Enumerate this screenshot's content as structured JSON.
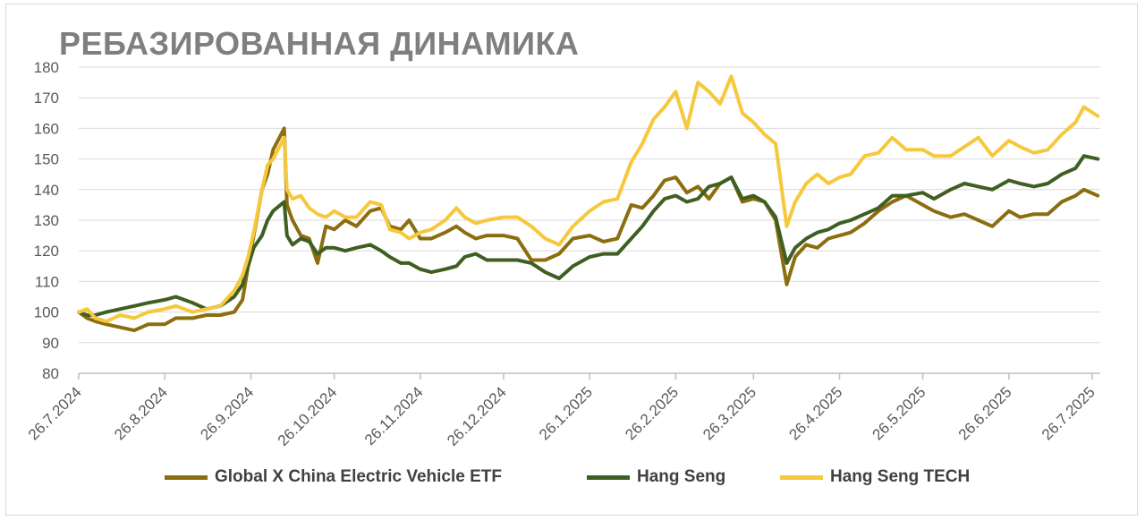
{
  "title": "РЕБАЗИРОВАННАЯ ДИНАМИКА",
  "chart_data": {
    "type": "line",
    "title": "РЕБАЗИРОВАННАЯ ДИНАМИКА",
    "xlabel": "",
    "ylabel": "",
    "ylim": [
      80,
      180
    ],
    "yticks": [
      "80",
      "90",
      "100",
      "110",
      "120",
      "130",
      "140",
      "150",
      "160",
      "170",
      "180"
    ],
    "xticks": [
      "26.7.2024",
      "26.8.2024",
      "26.9.2024",
      "26.10.2024",
      "26.11.2024",
      "26.12.2024",
      "26.1.2025",
      "26.2.2025",
      "26.3.2025",
      "26.4.2025",
      "26.5.2025",
      "26.6.2025",
      "26.7.2025"
    ],
    "grid": "horizontal",
    "legend_position": "bottom",
    "series": [
      {
        "name": "Global X China Electric Vehicle ETF",
        "color": "#8c6d0f",
        "points": [
          [
            "2024-07-26",
            100
          ],
          [
            "2024-07-29",
            98
          ],
          [
            "2024-08-01",
            97
          ],
          [
            "2024-08-05",
            96
          ],
          [
            "2024-08-10",
            95
          ],
          [
            "2024-08-15",
            94
          ],
          [
            "2024-08-20",
            96
          ],
          [
            "2024-08-26",
            96
          ],
          [
            "2024-08-30",
            98
          ],
          [
            "2024-09-05",
            98
          ],
          [
            "2024-09-10",
            99
          ],
          [
            "2024-09-15",
            99
          ],
          [
            "2024-09-20",
            100
          ],
          [
            "2024-09-23",
            104
          ],
          [
            "2024-09-25",
            115
          ],
          [
            "2024-09-27",
            125
          ],
          [
            "2024-09-30",
            140
          ],
          [
            "2024-10-02",
            145
          ],
          [
            "2024-10-04",
            153
          ],
          [
            "2024-10-08",
            160
          ],
          [
            "2024-10-09",
            135
          ],
          [
            "2024-10-11",
            130
          ],
          [
            "2024-10-14",
            125
          ],
          [
            "2024-10-17",
            124
          ],
          [
            "2024-10-20",
            116
          ],
          [
            "2024-10-23",
            128
          ],
          [
            "2024-10-26",
            127
          ],
          [
            "2024-10-30",
            130
          ],
          [
            "2024-11-03",
            128
          ],
          [
            "2024-11-08",
            133
          ],
          [
            "2024-11-12",
            134
          ],
          [
            "2024-11-15",
            128
          ],
          [
            "2024-11-19",
            127
          ],
          [
            "2024-11-22",
            130
          ],
          [
            "2024-11-26",
            124
          ],
          [
            "2024-11-30",
            124
          ],
          [
            "2024-12-05",
            126
          ],
          [
            "2024-12-09",
            128
          ],
          [
            "2024-12-12",
            126
          ],
          [
            "2024-12-16",
            124
          ],
          [
            "2024-12-20",
            125
          ],
          [
            "2024-12-26",
            125
          ],
          [
            "2024-12-31",
            124
          ],
          [
            "2025-01-05",
            117
          ],
          [
            "2025-01-10",
            117
          ],
          [
            "2025-01-15",
            119
          ],
          [
            "2025-01-20",
            124
          ],
          [
            "2025-01-26",
            125
          ],
          [
            "2025-01-31",
            123
          ],
          [
            "2025-02-05",
            124
          ],
          [
            "2025-02-10",
            135
          ],
          [
            "2025-02-14",
            134
          ],
          [
            "2025-02-18",
            138
          ],
          [
            "2025-02-22",
            143
          ],
          [
            "2025-02-26",
            144
          ],
          [
            "2025-03-02",
            139
          ],
          [
            "2025-03-06",
            141
          ],
          [
            "2025-03-10",
            137
          ],
          [
            "2025-03-14",
            142
          ],
          [
            "2025-03-18",
            144
          ],
          [
            "2025-03-22",
            136
          ],
          [
            "2025-03-26",
            137
          ],
          [
            "2025-03-30",
            136
          ],
          [
            "2025-04-03",
            130
          ],
          [
            "2025-04-07",
            109
          ],
          [
            "2025-04-10",
            118
          ],
          [
            "2025-04-14",
            122
          ],
          [
            "2025-04-18",
            121
          ],
          [
            "2025-04-22",
            124
          ],
          [
            "2025-04-26",
            125
          ],
          [
            "2025-04-30",
            126
          ],
          [
            "2025-05-05",
            129
          ],
          [
            "2025-05-10",
            133
          ],
          [
            "2025-05-15",
            136
          ],
          [
            "2025-05-20",
            138
          ],
          [
            "2025-05-26",
            135
          ],
          [
            "2025-05-30",
            133
          ],
          [
            "2025-06-05",
            131
          ],
          [
            "2025-06-10",
            132
          ],
          [
            "2025-06-15",
            130
          ],
          [
            "2025-06-20",
            128
          ],
          [
            "2025-06-26",
            133
          ],
          [
            "2025-06-30",
            131
          ],
          [
            "2025-07-05",
            132
          ],
          [
            "2025-07-10",
            132
          ],
          [
            "2025-07-15",
            136
          ],
          [
            "2025-07-20",
            138
          ],
          [
            "2025-07-23",
            140
          ],
          [
            "2025-07-28",
            138
          ]
        ]
      },
      {
        "name": "Hang Seng",
        "color": "#3f5f22",
        "points": [
          [
            "2024-07-26",
            100
          ],
          [
            "2024-07-29",
            99
          ],
          [
            "2024-08-01",
            99
          ],
          [
            "2024-08-05",
            100
          ],
          [
            "2024-08-10",
            101
          ],
          [
            "2024-08-15",
            102
          ],
          [
            "2024-08-20",
            103
          ],
          [
            "2024-08-26",
            104
          ],
          [
            "2024-08-30",
            105
          ],
          [
            "2024-09-05",
            103
          ],
          [
            "2024-09-10",
            101
          ],
          [
            "2024-09-15",
            102
          ],
          [
            "2024-09-20",
            105
          ],
          [
            "2024-09-23",
            109
          ],
          [
            "2024-09-25",
            115
          ],
          [
            "2024-09-27",
            121
          ],
          [
            "2024-09-30",
            125
          ],
          [
            "2024-10-02",
            130
          ],
          [
            "2024-10-04",
            133
          ],
          [
            "2024-10-08",
            136
          ],
          [
            "2024-10-09",
            125
          ],
          [
            "2024-10-11",
            122
          ],
          [
            "2024-10-14",
            124
          ],
          [
            "2024-10-17",
            123
          ],
          [
            "2024-10-20",
            119
          ],
          [
            "2024-10-23",
            121
          ],
          [
            "2024-10-26",
            121
          ],
          [
            "2024-10-30",
            120
          ],
          [
            "2024-11-03",
            121
          ],
          [
            "2024-11-08",
            122
          ],
          [
            "2024-11-12",
            120
          ],
          [
            "2024-11-15",
            118
          ],
          [
            "2024-11-19",
            116
          ],
          [
            "2024-11-22",
            116
          ],
          [
            "2024-11-26",
            114
          ],
          [
            "2024-11-30",
            113
          ],
          [
            "2024-12-05",
            114
          ],
          [
            "2024-12-09",
            115
          ],
          [
            "2024-12-12",
            118
          ],
          [
            "2024-12-16",
            119
          ],
          [
            "2024-12-20",
            117
          ],
          [
            "2024-12-26",
            117
          ],
          [
            "2024-12-31",
            117
          ],
          [
            "2025-01-05",
            116
          ],
          [
            "2025-01-10",
            113
          ],
          [
            "2025-01-15",
            111
          ],
          [
            "2025-01-20",
            115
          ],
          [
            "2025-01-26",
            118
          ],
          [
            "2025-01-31",
            119
          ],
          [
            "2025-02-05",
            119
          ],
          [
            "2025-02-10",
            124
          ],
          [
            "2025-02-14",
            128
          ],
          [
            "2025-02-18",
            133
          ],
          [
            "2025-02-22",
            137
          ],
          [
            "2025-02-26",
            138
          ],
          [
            "2025-03-02",
            136
          ],
          [
            "2025-03-06",
            137
          ],
          [
            "2025-03-10",
            141
          ],
          [
            "2025-03-14",
            142
          ],
          [
            "2025-03-18",
            144
          ],
          [
            "2025-03-22",
            137
          ],
          [
            "2025-03-26",
            138
          ],
          [
            "2025-03-30",
            136
          ],
          [
            "2025-04-03",
            131
          ],
          [
            "2025-04-07",
            116
          ],
          [
            "2025-04-10",
            121
          ],
          [
            "2025-04-14",
            124
          ],
          [
            "2025-04-18",
            126
          ],
          [
            "2025-04-22",
            127
          ],
          [
            "2025-04-26",
            129
          ],
          [
            "2025-04-30",
            130
          ],
          [
            "2025-05-05",
            132
          ],
          [
            "2025-05-10",
            134
          ],
          [
            "2025-05-15",
            138
          ],
          [
            "2025-05-20",
            138
          ],
          [
            "2025-05-26",
            139
          ],
          [
            "2025-05-30",
            137
          ],
          [
            "2025-06-05",
            140
          ],
          [
            "2025-06-10",
            142
          ],
          [
            "2025-06-15",
            141
          ],
          [
            "2025-06-20",
            140
          ],
          [
            "2025-06-26",
            143
          ],
          [
            "2025-06-30",
            142
          ],
          [
            "2025-07-05",
            141
          ],
          [
            "2025-07-10",
            142
          ],
          [
            "2025-07-15",
            145
          ],
          [
            "2025-07-20",
            147
          ],
          [
            "2025-07-23",
            151
          ],
          [
            "2025-07-28",
            150
          ]
        ]
      },
      {
        "name": "Hang Seng TECH",
        "color": "#f6c83c",
        "points": [
          [
            "2024-07-26",
            100
          ],
          [
            "2024-07-29",
            101
          ],
          [
            "2024-08-01",
            98
          ],
          [
            "2024-08-05",
            97
          ],
          [
            "2024-08-10",
            99
          ],
          [
            "2024-08-15",
            98
          ],
          [
            "2024-08-20",
            100
          ],
          [
            "2024-08-26",
            101
          ],
          [
            "2024-08-30",
            102
          ],
          [
            "2024-09-05",
            100
          ],
          [
            "2024-09-10",
            101
          ],
          [
            "2024-09-15",
            102
          ],
          [
            "2024-09-20",
            107
          ],
          [
            "2024-09-23",
            112
          ],
          [
            "2024-09-25",
            118
          ],
          [
            "2024-09-27",
            126
          ],
          [
            "2024-09-30",
            140
          ],
          [
            "2024-10-02",
            148
          ],
          [
            "2024-10-04",
            150
          ],
          [
            "2024-10-08",
            157
          ],
          [
            "2024-10-09",
            140
          ],
          [
            "2024-10-11",
            137
          ],
          [
            "2024-10-14",
            138
          ],
          [
            "2024-10-17",
            134
          ],
          [
            "2024-10-20",
            132
          ],
          [
            "2024-10-23",
            131
          ],
          [
            "2024-10-26",
            133
          ],
          [
            "2024-10-30",
            131
          ],
          [
            "2024-11-03",
            131
          ],
          [
            "2024-11-08",
            136
          ],
          [
            "2024-11-12",
            135
          ],
          [
            "2024-11-15",
            127
          ],
          [
            "2024-11-19",
            126
          ],
          [
            "2024-11-22",
            124
          ],
          [
            "2024-11-26",
            126
          ],
          [
            "2024-11-30",
            127
          ],
          [
            "2024-12-05",
            130
          ],
          [
            "2024-12-09",
            134
          ],
          [
            "2024-12-12",
            131
          ],
          [
            "2024-12-16",
            129
          ],
          [
            "2024-12-20",
            130
          ],
          [
            "2024-12-26",
            131
          ],
          [
            "2024-12-31",
            131
          ],
          [
            "2025-01-05",
            128
          ],
          [
            "2025-01-10",
            124
          ],
          [
            "2025-01-15",
            122
          ],
          [
            "2025-01-20",
            128
          ],
          [
            "2025-01-26",
            133
          ],
          [
            "2025-01-31",
            136
          ],
          [
            "2025-02-05",
            137
          ],
          [
            "2025-02-10",
            149
          ],
          [
            "2025-02-14",
            155
          ],
          [
            "2025-02-18",
            163
          ],
          [
            "2025-02-22",
            167
          ],
          [
            "2025-02-26",
            172
          ],
          [
            "2025-03-02",
            160
          ],
          [
            "2025-03-06",
            175
          ],
          [
            "2025-03-10",
            172
          ],
          [
            "2025-03-14",
            168
          ],
          [
            "2025-03-18",
            177
          ],
          [
            "2025-03-22",
            165
          ],
          [
            "2025-03-26",
            162
          ],
          [
            "2025-03-30",
            158
          ],
          [
            "2025-04-03",
            155
          ],
          [
            "2025-04-07",
            128
          ],
          [
            "2025-04-10",
            136
          ],
          [
            "2025-04-14",
            142
          ],
          [
            "2025-04-18",
            145
          ],
          [
            "2025-04-22",
            142
          ],
          [
            "2025-04-26",
            144
          ],
          [
            "2025-04-30",
            145
          ],
          [
            "2025-05-05",
            151
          ],
          [
            "2025-05-10",
            152
          ],
          [
            "2025-05-15",
            157
          ],
          [
            "2025-05-20",
            153
          ],
          [
            "2025-05-26",
            153
          ],
          [
            "2025-05-30",
            151
          ],
          [
            "2025-06-05",
            151
          ],
          [
            "2025-06-10",
            154
          ],
          [
            "2025-06-15",
            157
          ],
          [
            "2025-06-20",
            151
          ],
          [
            "2025-06-26",
            156
          ],
          [
            "2025-06-30",
            154
          ],
          [
            "2025-07-05",
            152
          ],
          [
            "2025-07-10",
            153
          ],
          [
            "2025-07-15",
            158
          ],
          [
            "2025-07-20",
            162
          ],
          [
            "2025-07-23",
            167
          ],
          [
            "2025-07-28",
            164
          ]
        ]
      }
    ]
  }
}
